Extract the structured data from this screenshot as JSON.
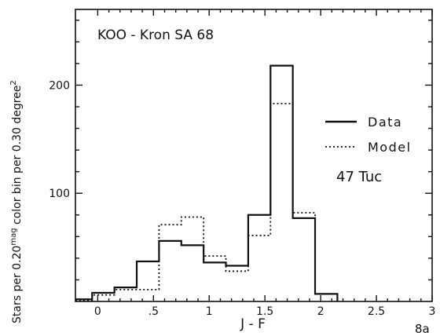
{
  "chart_data": {
    "type": "histogram",
    "title": "KOO - Kron SA 68",
    "annotation": "47 Tuc",
    "figure_label": "8a",
    "xlabel": "J - F",
    "ylabel": "Stars per 0.20mag color bin per 0.30 degree2",
    "ylabel_parts": {
      "a": "Stars per 0.20",
      "a_sup": "mag",
      "b": " color bin per 0.30 degree",
      "b_sup": "2"
    },
    "xlim": [
      -0.2,
      3.0
    ],
    "ylim": [
      0,
      270
    ],
    "x_ticks": [
      {
        "value": 0,
        "label": "0"
      },
      {
        "value": 0.5,
        "label": ".5"
      },
      {
        "value": 1,
        "label": "1"
      },
      {
        "value": 1.5,
        "label": "1.5"
      },
      {
        "value": 2,
        "label": "2"
      },
      {
        "value": 2.5,
        "label": "2.5"
      },
      {
        "value": 3,
        "label": "3"
      }
    ],
    "y_ticks": [
      {
        "value": 100,
        "label": "100"
      },
      {
        "value": 200,
        "label": "200"
      }
    ],
    "bin_edges": [
      -0.2,
      -0.05,
      0.15,
      0.35,
      0.55,
      0.75,
      0.95,
      1.15,
      1.35,
      1.55,
      1.75,
      1.95,
      2.15
    ],
    "series": [
      {
        "name": "Data",
        "style": "solid",
        "values": [
          2,
          8,
          13,
          37,
          56,
          52,
          36,
          33,
          80,
          218,
          77,
          7
        ]
      },
      {
        "name": "Model",
        "style": "dotted",
        "values": [
          1,
          6,
          11,
          11,
          71,
          78,
          42,
          28,
          61,
          183,
          82,
          7
        ]
      }
    ],
    "legend_position": "right"
  }
}
